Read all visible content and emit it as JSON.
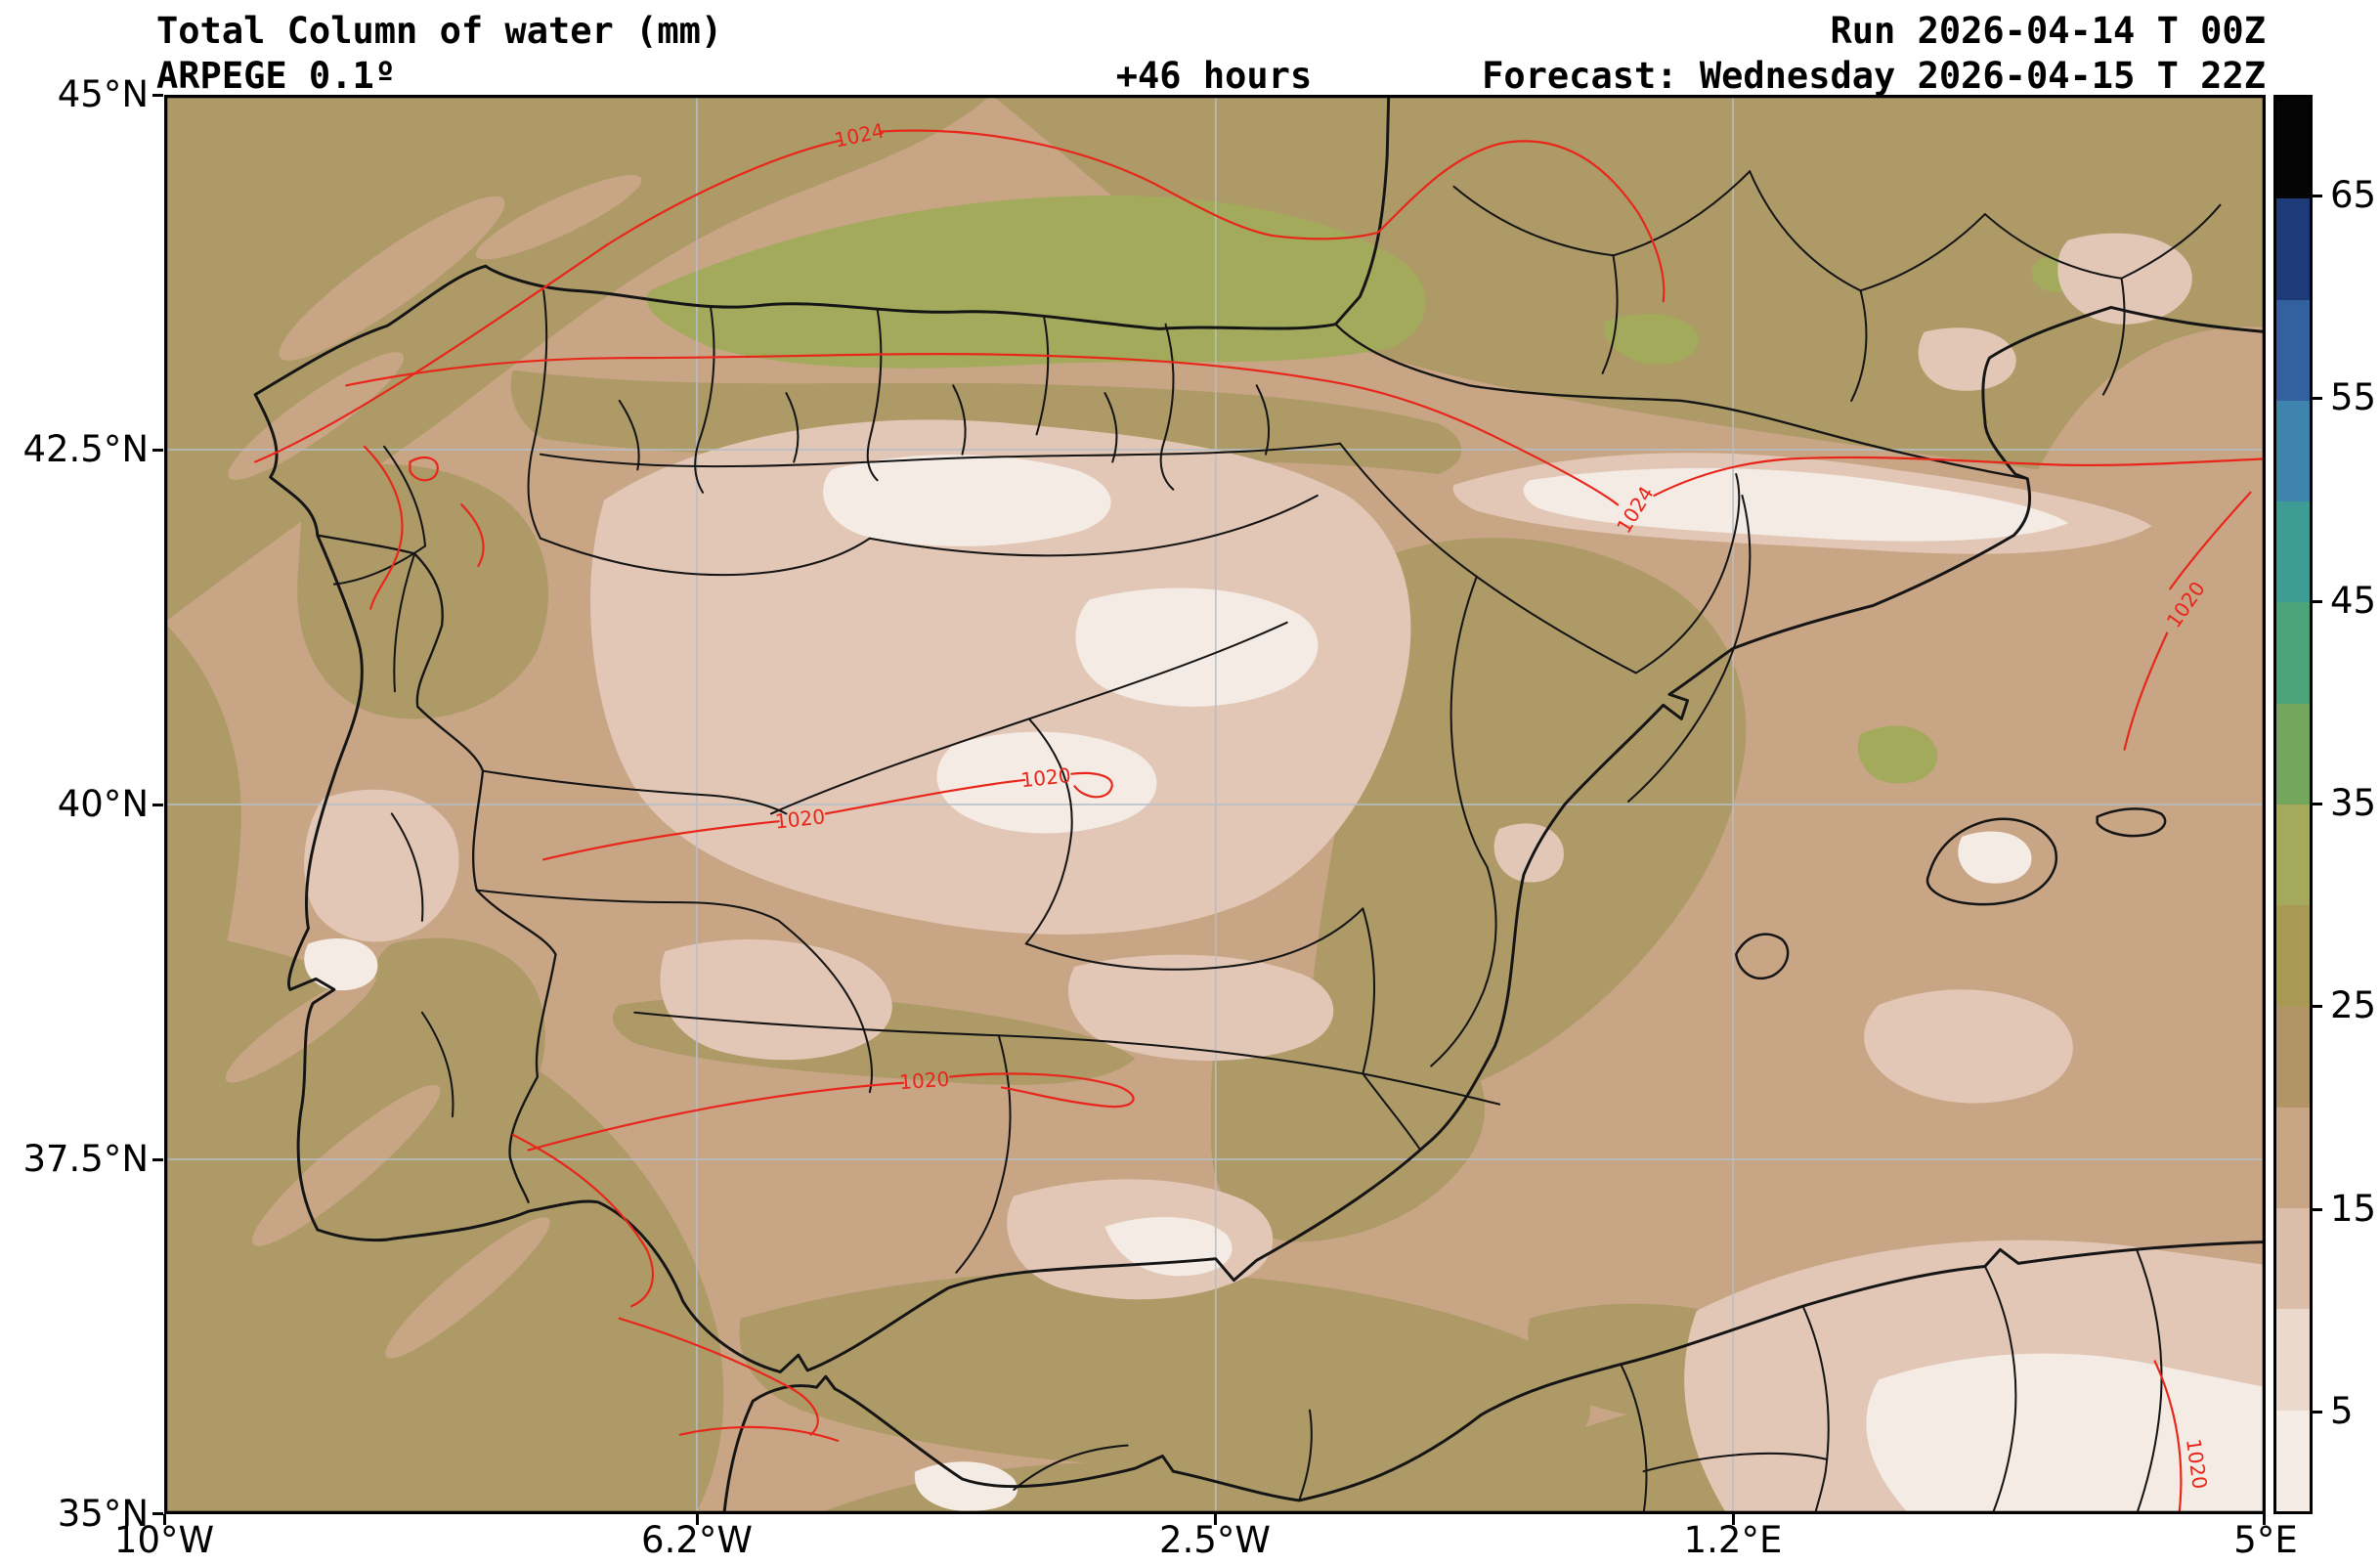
{
  "header": {
    "title": "Total Column of water (mm)",
    "model": "ARPEGE 0.1º",
    "lead_time": "+46 hours",
    "run": "Run 2026-04-14 T 00Z",
    "forecast": "Forecast: Wednesday 2026-04-15 T 22Z"
  },
  "axes": {
    "lat_ticks": [
      "45°N",
      "42.5°N",
      "40°N",
      "37.5°N",
      "35°N"
    ],
    "lon_ticks": [
      "10°W",
      "6.2°W",
      "2.5°W",
      "1.2°E",
      "5°E"
    ]
  },
  "colorbar": {
    "tick_labels": [
      "65",
      "55",
      "45",
      "35",
      "25",
      "15",
      "5"
    ],
    "unit": "mm",
    "colors_bottom_to_top": [
      "#f6ece6",
      "#ecd9cd",
      "#dcbda9",
      "#c8a585",
      "#b29567",
      "#a89a55",
      "#a5a95b",
      "#74a75e",
      "#4ba379",
      "#3d9c94",
      "#3f84ad",
      "#33619f",
      "#1d3b78",
      "#050505"
    ]
  },
  "isobar_labels": [
    "1024",
    "1024",
    "1020",
    "1020",
    "1020",
    "1020",
    "1020"
  ],
  "palette": {
    "sea_tan": "#c8a585",
    "khaki": "#ad9a67",
    "olive": "#a3aa5c",
    "pink": "#e2c7b6",
    "pale": "#f4ebe5",
    "boundary": "#151515",
    "isobar_red": "#e8261a",
    "grid": "#b6bfc7",
    "frame": "#000000"
  },
  "chart_data": {
    "type": "heatmap",
    "title": "Total Column of water (mm)",
    "model": "ARPEGE 0.1º",
    "run": "2026-04-14 T 00Z",
    "forecast_valid": "Wednesday 2026-04-15 T 22Z",
    "lead_hours": 46,
    "variable": "Total column of water",
    "unit": "mm",
    "extent": {
      "lon_min": -10,
      "lon_max": 5,
      "lat_min": 35,
      "lat_max": 45
    },
    "x_ticks": [
      "10°W",
      "6.2°W",
      "2.5°W",
      "1.2°E",
      "5°E"
    ],
    "y_ticks": [
      "45°N",
      "42.5°N",
      "40°N",
      "37.5°N",
      "35°N"
    ],
    "color_levels_mm": [
      0,
      5,
      10,
      15,
      20,
      25,
      30,
      35,
      40,
      45,
      50,
      55,
      60,
      65,
      70
    ],
    "colorbar_tick_values": [
      65,
      55,
      45,
      35,
      25,
      15,
      5
    ],
    "overlay": "Red isobar contour lines labeled 1020 and 1024",
    "regions_depicted": [
      "Iberian Peninsula",
      "southern France",
      "Balearic Islands",
      "northern Morocco and Algeria"
    ],
    "field_summary": "Mostly 5-25 mm: driest (≤5 mm) over the central Spanish plateau and an elongated band along the Pyrenees/Ebro, 15-25 mm over surrounding Atlantic and Mediterranean waters, a 25-35 mm olive-green maximum band over the Bay of Biscay, and light 5-10 mm areas over the southeastern Mediterranean and south-coast areas."
  }
}
